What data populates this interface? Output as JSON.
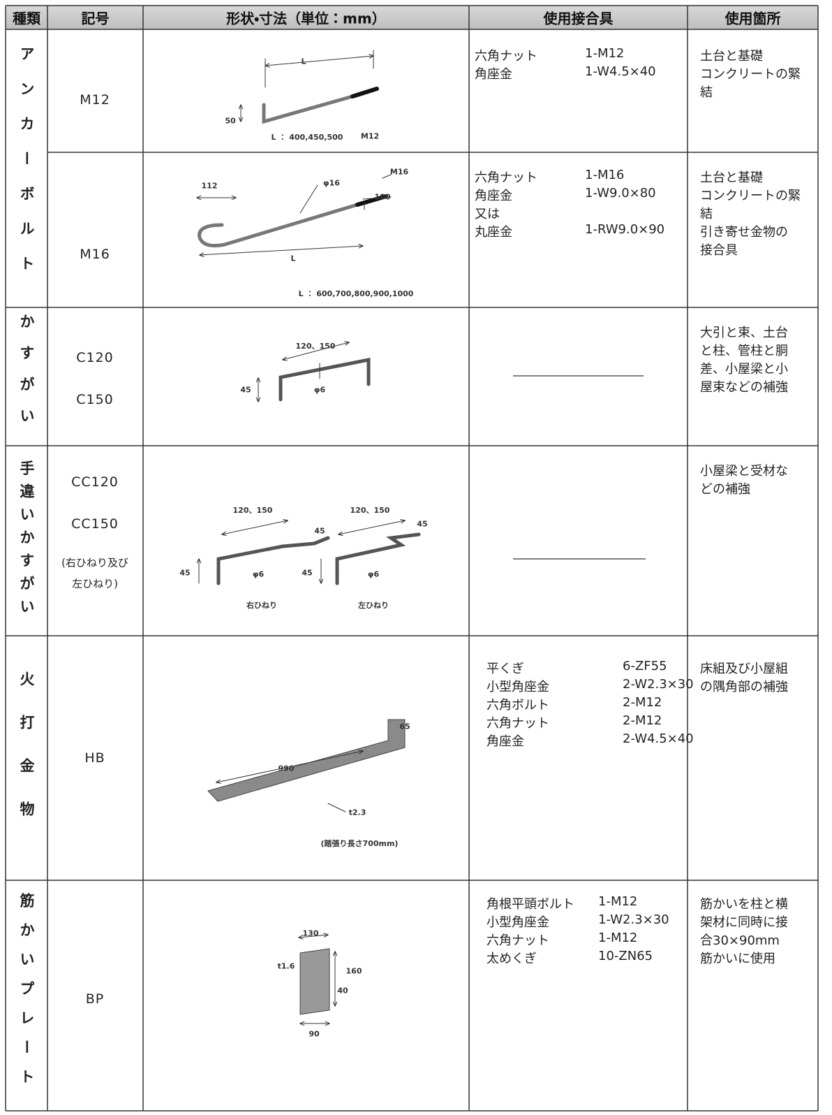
{
  "table": {
    "header": [
      "種類",
      "記号",
      "形状・寸法（単位：mm）",
      "使用接合具",
      "使用箇所"
    ],
    "rows": [
      {
        "type": "アンカーボルト",
        "symbols": [
          "M12"
        ],
        "figure": [
          "L",
          "50",
          "L ： 400,450,500",
          "M12"
        ],
        "fittings": [
          [
            "六角ナット",
            "1-M12"
          ],
          [
            "角座金",
            "1-W4.5×40"
          ]
        ],
        "usage": [
          "土台と基礎",
          "コンクリートの緊",
          "結"
        ]
      },
      {
        "symbols": [
          "M16"
        ],
        "figure": [
          "112",
          "φ16",
          "M16",
          "100",
          "L",
          "L ： 600,700,800,900,1000"
        ],
        "fittings": [
          [
            "六角ナット",
            "1-M16"
          ],
          [
            "角座金",
            "1-W9.0×80"
          ],
          [
            "又は"
          ],
          [
            "丸座金",
            "1-RW9.0×90"
          ]
        ],
        "usage": [
          "土台と基礎",
          "コンクリートの緊",
          "結",
          "引き寄せ金物の",
          "接合具"
        ]
      },
      {
        "type": "かすがい",
        "symbols": [
          "C120",
          "C150"
        ],
        "figure": [
          "120、150",
          "45",
          "φ6"
        ],
        "fittings": [],
        "usage": [
          "大引と束、土台",
          "と柱、管柱と胴",
          "差、小屋梁と小",
          "屋束などの補強"
        ]
      },
      {
        "type": "手違いかすがい",
        "symbols": [
          "CC120",
          "CC150"
        ],
        "note": [
          "(右ひねり及び",
          "左ひねり)"
        ],
        "figure": [
          "120、150",
          "45",
          "45",
          "φ6",
          "120、150",
          "45",
          "45",
          "φ6",
          "右ひねり",
          "左ひねり"
        ],
        "fittings": [],
        "usage": [
          "小屋梁と受材な",
          "どの補強"
        ]
      },
      {
        "type": "火打金物",
        "symbols": [
          "HB"
        ],
        "figure": [
          "990",
          "65",
          "t2.3",
          "(踏張り長さ700mm)"
        ],
        "fittings": [
          [
            "平くぎ",
            "6-ZF55"
          ],
          [
            "小型角座金",
            "2-W2.3×30"
          ],
          [
            "六角ボルト",
            "2-M12"
          ],
          [
            "六角ナット",
            "2-M12"
          ],
          [
            "角座金",
            "2-W4.5×40"
          ]
        ],
        "usage": [
          "床組及び小屋組",
          "の隅角部の補強"
        ]
      },
      {
        "type": "筋かいプレート",
        "symbols": [
          "BP"
        ],
        "figure": [
          "130",
          "t1.6",
          "160",
          "40",
          "90"
        ],
        "fittings": [
          [
            "角根平頭ボルト",
            "1-M12"
          ],
          [
            "小型角座金",
            "1-W2.3×30"
          ],
          [
            "六角ナット",
            "1-M12"
          ],
          [
            "太めくぎ",
            "10-ZN65"
          ]
        ],
        "usage": [
          "筋かいを柱と横",
          "架材に同時に接",
          "合30×90mm",
          "筋かいに使用"
        ]
      }
    ]
  }
}
